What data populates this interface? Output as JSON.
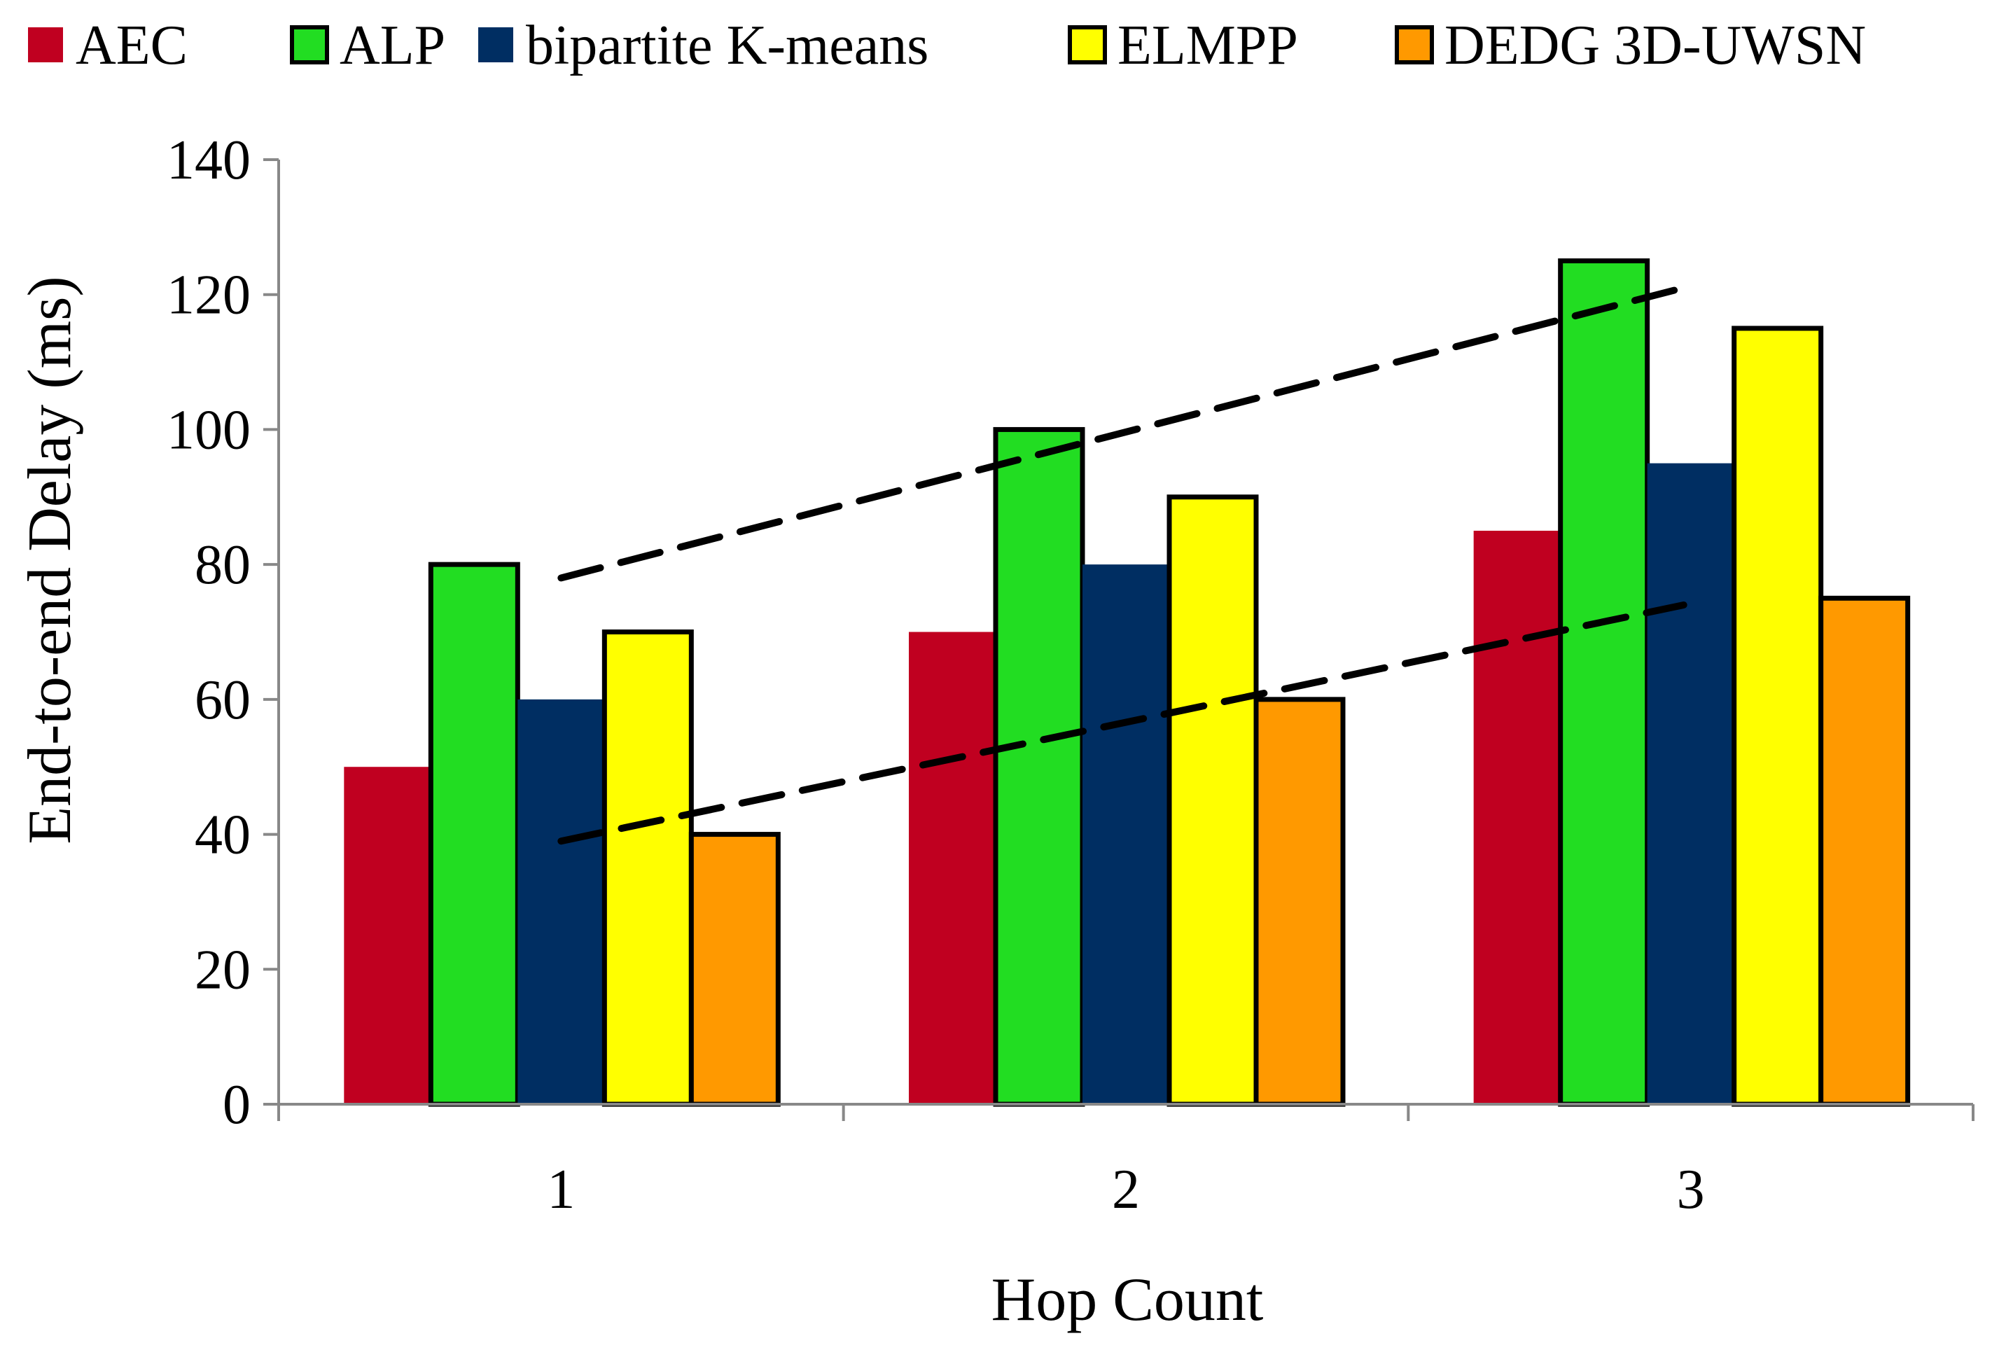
{
  "chart_data": {
    "type": "bar",
    "title": "",
    "xlabel": "Hop Count",
    "ylabel": "End-to-end Delay (ms)",
    "ylim": [
      0,
      140
    ],
    "yticks": [
      0,
      20,
      40,
      60,
      80,
      100,
      120,
      140
    ],
    "grid": false,
    "legend_position": "top",
    "categories": [
      "1",
      "2",
      "3"
    ],
    "series": [
      {
        "name": "AEC",
        "color": "#C00020",
        "outlined": false,
        "values": [
          50,
          70,
          85
        ]
      },
      {
        "name": "ALP",
        "color": "#22DD22",
        "outlined": true,
        "values": [
          80,
          100,
          125
        ]
      },
      {
        "name": "bipartite K-means",
        "color": "#002E62",
        "outlined": false,
        "values": [
          60,
          80,
          95
        ]
      },
      {
        "name": "ELMPP",
        "color": "#FFFF00",
        "outlined": true,
        "values": [
          70,
          90,
          115
        ]
      },
      {
        "name": "DEDG 3D-UWSN",
        "color": "#FF9900",
        "outlined": true,
        "values": [
          40,
          60,
          75
        ]
      }
    ],
    "trend_lines": [
      {
        "name": "upper-trend",
        "style": "dashed",
        "x": [
          1,
          3
        ],
        "y": [
          78,
          121
        ]
      },
      {
        "name": "lower-trend",
        "style": "dashed",
        "x": [
          1,
          3
        ],
        "y": [
          39,
          74
        ]
      }
    ]
  }
}
